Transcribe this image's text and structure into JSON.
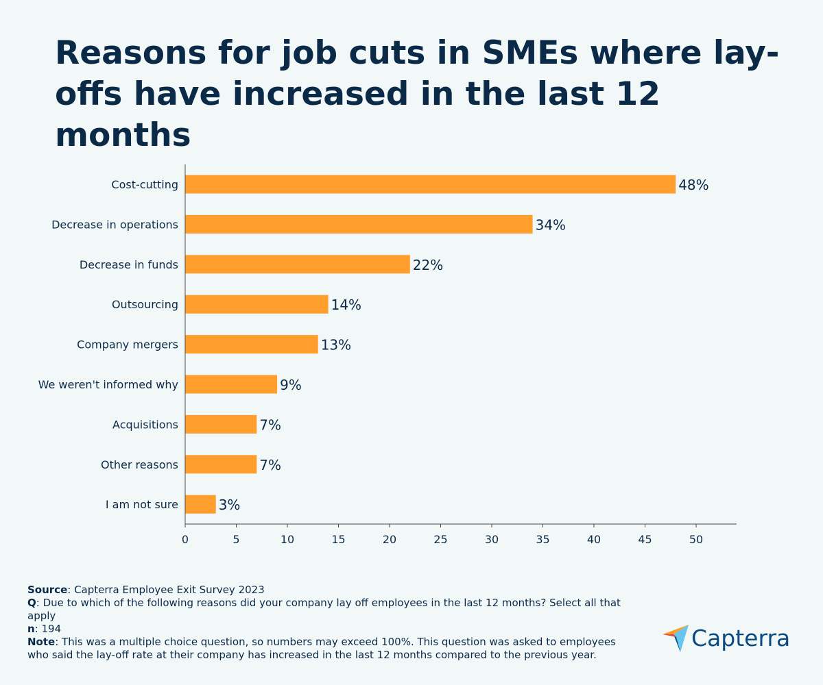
{
  "title": "Reasons for job cuts in SMEs where lay-offs have increased in the last 12 months",
  "chart_data": {
    "type": "bar",
    "orientation": "horizontal",
    "categories": [
      "Cost-cutting",
      "Decrease in operations",
      "Decrease in funds",
      "Outsourcing",
      "Company mergers",
      "We weren't informed why",
      "Acquisitions",
      "Other reasons",
      "I am not sure"
    ],
    "values": [
      48,
      34,
      22,
      14,
      13,
      9,
      7,
      7,
      3
    ],
    "value_labels": [
      "48%",
      "34%",
      "22%",
      "14%",
      "13%",
      "9%",
      "7%",
      "7%",
      "3%"
    ],
    "xticks": [
      "0",
      "5",
      "10",
      "15",
      "20",
      "25",
      "30",
      "35",
      "40",
      "45",
      "50"
    ],
    "xlim": [
      0,
      54
    ],
    "bar_color": "#ff9e2c",
    "grid": false,
    "xlabel": "",
    "ylabel": ""
  },
  "footer": {
    "source_label": "Source",
    "source_text": ": Capterra Employee Exit Survey 2023",
    "q_label": "Q",
    "q_text": ": Due to which of the following reasons did your company lay off employees in the last 12 months? Select all that apply",
    "n_label": "n",
    "n_text": ": 194",
    "note_label": "Note",
    "note_text": ": This was a multiple choice question, so numbers may exceed 100%. This question was asked to employees who said the lay-off rate at their company has increased in the last 12 months compared to the previous year."
  },
  "logo": {
    "text": "Capterra",
    "colors": [
      "#ff9d28",
      "#68c5ed",
      "#044d80",
      "#e54747"
    ]
  }
}
